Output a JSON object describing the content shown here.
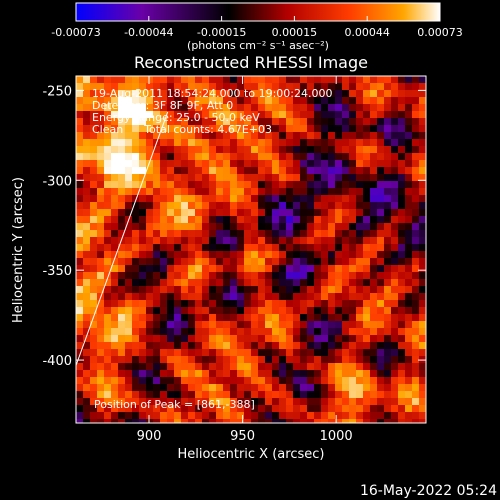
{
  "chart_data": {
    "type": "heatmap",
    "title": "Reconstructed RHESSI Image",
    "xlabel": "Heliocentric X (arcsec)",
    "ylabel": "Heliocentric Y (arcsec)",
    "xlim": [
      861,
      1048
    ],
    "ylim": [
      -435,
      -242
    ],
    "xticks": [
      900,
      950,
      1000
    ],
    "yticks": [
      -250,
      -300,
      -350,
      -400
    ],
    "colorbar": {
      "min": -0.00073,
      "max": 0.00073,
      "ticks": [
        "-0.00073",
        "-0.00044",
        "-0.00015",
        "0.00015",
        "0.00044",
        "0.00073"
      ],
      "unit_label": "(photons cm⁻² s⁻¹ asec⁻²)"
    },
    "colormap": [
      "#0000ff",
      "#6a00a8",
      "#000000",
      "#b20000",
      "#ff3c00",
      "#ffa600",
      "#ffffff"
    ],
    "annotations": [
      "19-Aug-2011 18:54:24.000 to 19:00:24.000",
      "Detectors: 3F 8F 9F, Att 0",
      "Energy Range: 25.0 - 50.0 keV",
      "Clean      Total counts: 4.67E+03"
    ],
    "peak_label": "Position of Peak = [861,-388]",
    "peak": [
      861,
      -388
    ],
    "limb_line": [
      [
        861,
        -403
      ],
      [
        910,
        -262
      ]
    ],
    "date_stamp": "16-May-2022 05:24"
  }
}
